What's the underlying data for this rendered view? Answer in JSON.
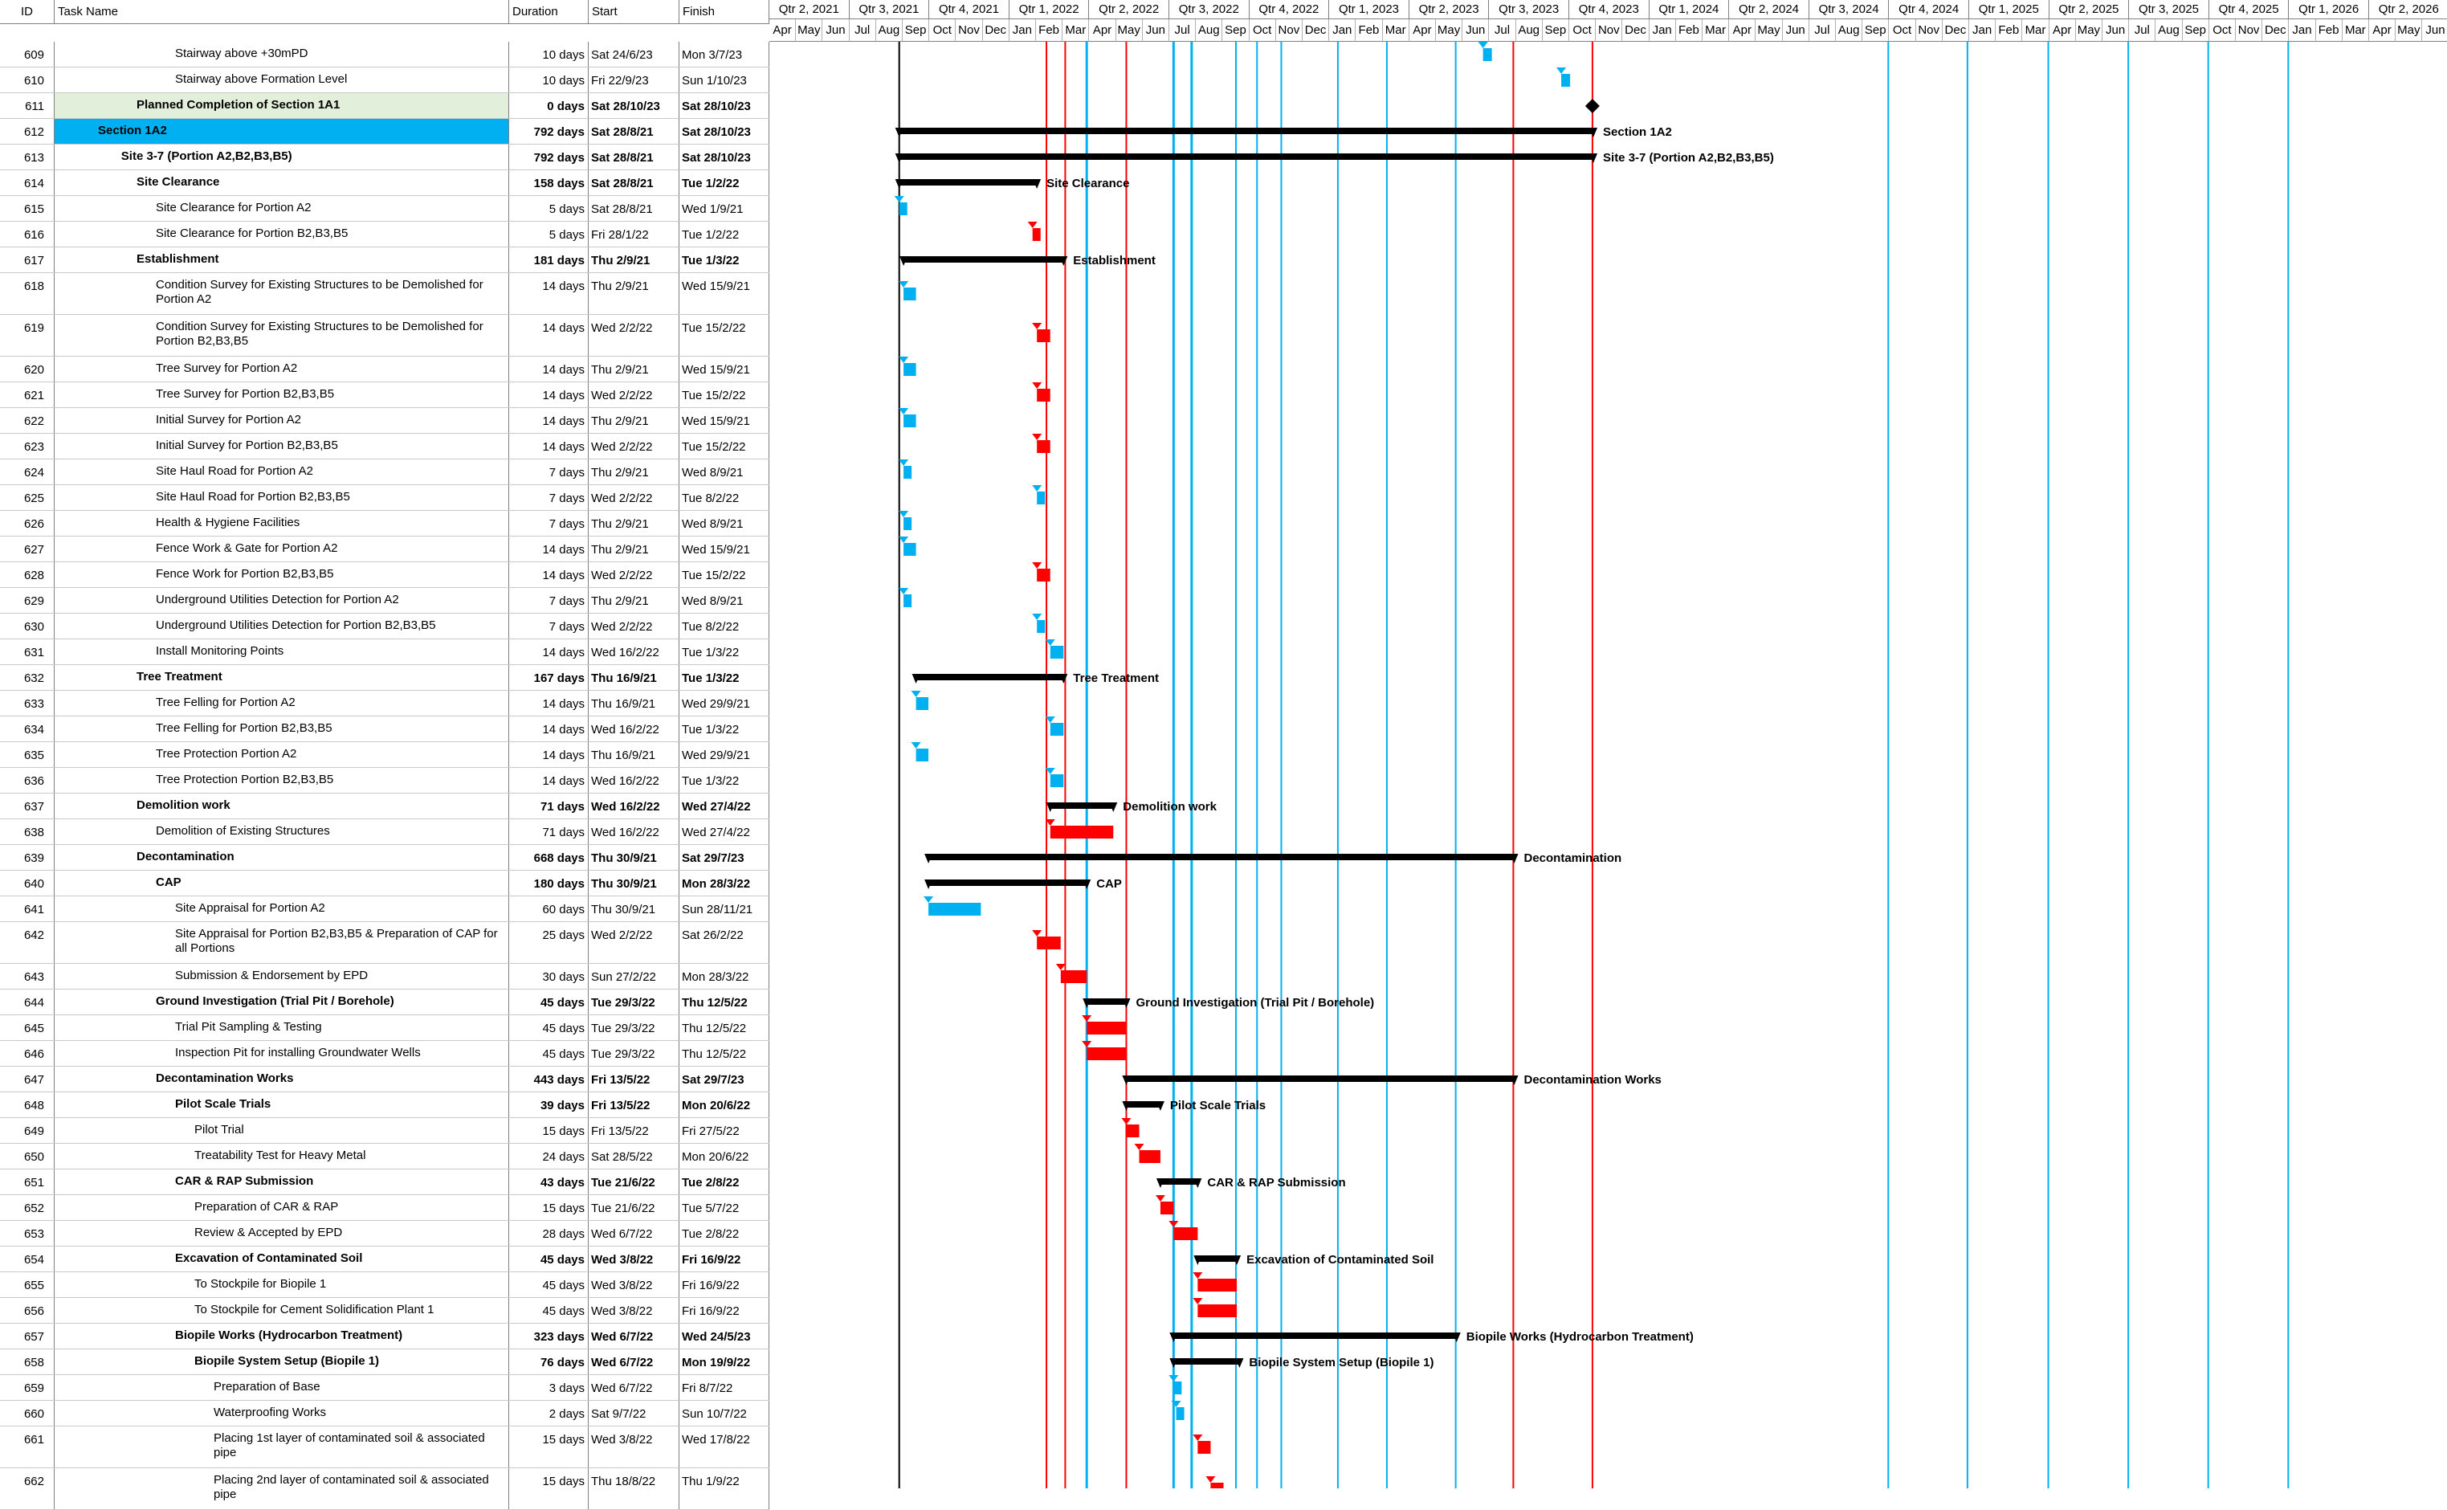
{
  "columns": {
    "id": "ID",
    "name": "Task Name",
    "duration": "Duration",
    "start": "Start",
    "finish": "Finish"
  },
  "timeline": {
    "quarters": [
      "Qtr 2, 2021",
      "Qtr 3, 2021",
      "Qtr 4, 2021",
      "Qtr 1, 2022",
      "Qtr 2, 2022",
      "Qtr 3, 2022",
      "Qtr 4, 2022",
      "Qtr 1, 2023",
      "Qtr 2, 2023",
      "Qtr 3, 2023",
      "Qtr 4, 2023",
      "Qtr 1, 2024",
      "Qtr 2, 2024",
      "Qtr 3, 2024",
      "Qtr 4, 2024",
      "Qtr 1, 2025",
      "Qtr 2, 2025",
      "Qtr 3, 2025",
      "Qtr 4, 2025",
      "Qtr 1, 2026",
      "Qtr 2, 2026"
    ],
    "months": [
      "Apr",
      "May",
      "Jun",
      "Jul",
      "Aug",
      "Sep",
      "Oct",
      "Nov",
      "Dec",
      "Jan",
      "Feb",
      "Mar",
      "Apr",
      "May",
      "Jun",
      "Jul",
      "Aug",
      "Sep",
      "Oct",
      "Nov",
      "Dec",
      "Jan",
      "Feb",
      "Mar",
      "Apr",
      "May",
      "Jun",
      "Jul",
      "Aug",
      "Sep",
      "Oct",
      "Nov",
      "Dec",
      "Jan",
      "Feb",
      "Mar",
      "Apr",
      "May",
      "Jun",
      "Jul",
      "Aug",
      "Sep",
      "Oct",
      "Nov",
      "Dec",
      "Jan",
      "Feb",
      "Mar",
      "Apr",
      "May",
      "Jun",
      "Jul",
      "Aug",
      "Sep",
      "Oct",
      "Nov",
      "Dec",
      "Jan",
      "Feb",
      "Mar",
      "Apr",
      "May",
      "Jun"
    ]
  },
  "colors": {
    "summary": "#000000",
    "normal": "#00B0F0",
    "critical": "#FF0000",
    "highlight_row": "#00B0F0",
    "milestone_row": "#E2EFDA"
  },
  "tasks": [
    {
      "id": "609",
      "name": "Stairway above +30mPD",
      "duration": "10 days",
      "start": "Sat 24/6/23",
      "finish": "Mon 3/7/23",
      "indent": 3,
      "type": "normal",
      "lines": 1
    },
    {
      "id": "610",
      "name": "Stairway above Formation Level",
      "duration": "10 days",
      "start": "Fri 22/9/23",
      "finish": "Sun 1/10/23",
      "indent": 3,
      "type": "normal",
      "lines": 1
    },
    {
      "id": "611",
      "name": "Planned Completion of Section 1A1",
      "duration": "0 days",
      "start": "Sat 28/10/23",
      "finish": "Sat 28/10/23",
      "indent": 2,
      "type": "milestone",
      "bold": true,
      "lines": 1
    },
    {
      "id": "612",
      "name": "Section 1A2",
      "duration": "792 days",
      "start": "Sat 28/8/21",
      "finish": "Sat 28/10/23",
      "indent": 1,
      "type": "summary",
      "bold": true,
      "lines": 1,
      "highlight": true
    },
    {
      "id": "613",
      "name": "Site 3-7 (Portion A2,B2,B3,B5)",
      "duration": "792 days",
      "start": "Sat 28/8/21",
      "finish": "Sat 28/10/23",
      "indent": 1.6,
      "type": "summary",
      "bold": true,
      "lines": 1
    },
    {
      "id": "614",
      "name": "Site Clearance",
      "duration": "158 days",
      "start": "Sat 28/8/21",
      "finish": "Tue 1/2/22",
      "indent": 2,
      "type": "summary",
      "bold": true,
      "lines": 1
    },
    {
      "id": "615",
      "name": "Site Clearance for Portion A2",
      "duration": "5 days",
      "start": "Sat 28/8/21",
      "finish": "Wed 1/9/21",
      "indent": 2.5,
      "type": "normal",
      "lines": 1
    },
    {
      "id": "616",
      "name": "Site Clearance for Portion B2,B3,B5",
      "duration": "5 days",
      "start": "Fri 28/1/22",
      "finish": "Tue 1/2/22",
      "indent": 2.5,
      "type": "critical",
      "lines": 1
    },
    {
      "id": "617",
      "name": "Establishment",
      "duration": "181 days",
      "start": "Thu 2/9/21",
      "finish": "Tue 1/3/22",
      "indent": 2,
      "type": "summary",
      "bold": true,
      "lines": 1
    },
    {
      "id": "618",
      "name": "Condition Survey for Existing Structures to be Demolished for Portion A2",
      "duration": "14 days",
      "start": "Thu 2/9/21",
      "finish": "Wed 15/9/21",
      "indent": 2.5,
      "type": "normal",
      "lines": 2
    },
    {
      "id": "619",
      "name": "Condition Survey for Existing Structures to be Demolished for Portion B2,B3,B5",
      "duration": "14 days",
      "start": "Wed 2/2/22",
      "finish": "Tue 15/2/22",
      "indent": 2.5,
      "type": "critical",
      "lines": 2
    },
    {
      "id": "620",
      "name": "Tree Survey for Portion A2",
      "duration": "14 days",
      "start": "Thu 2/9/21",
      "finish": "Wed 15/9/21",
      "indent": 2.5,
      "type": "normal",
      "lines": 1
    },
    {
      "id": "621",
      "name": "Tree Survey for Portion B2,B3,B5",
      "duration": "14 days",
      "start": "Wed 2/2/22",
      "finish": "Tue 15/2/22",
      "indent": 2.5,
      "type": "critical",
      "lines": 1
    },
    {
      "id": "622",
      "name": "Initial Survey for Portion A2",
      "duration": "14 days",
      "start": "Thu 2/9/21",
      "finish": "Wed 15/9/21",
      "indent": 2.5,
      "type": "normal",
      "lines": 1
    },
    {
      "id": "623",
      "name": "Initial Survey for Portion B2,B3,B5",
      "duration": "14 days",
      "start": "Wed 2/2/22",
      "finish": "Tue 15/2/22",
      "indent": 2.5,
      "type": "critical",
      "lines": 1
    },
    {
      "id": "624",
      "name": "Site Haul Road for Portion A2",
      "duration": "7 days",
      "start": "Thu 2/9/21",
      "finish": "Wed 8/9/21",
      "indent": 2.5,
      "type": "normal",
      "lines": 1
    },
    {
      "id": "625",
      "name": "Site Haul Road for Portion B2,B3,B5",
      "duration": "7 days",
      "start": "Wed 2/2/22",
      "finish": "Tue 8/2/22",
      "indent": 2.5,
      "type": "normal",
      "lines": 1
    },
    {
      "id": "626",
      "name": "Health & Hygiene Facilities",
      "duration": "7 days",
      "start": "Thu 2/9/21",
      "finish": "Wed 8/9/21",
      "indent": 2.5,
      "type": "normal",
      "lines": 1
    },
    {
      "id": "627",
      "name": "Fence Work & Gate for Portion A2",
      "duration": "14 days",
      "start": "Thu 2/9/21",
      "finish": "Wed 15/9/21",
      "indent": 2.5,
      "type": "normal",
      "lines": 1
    },
    {
      "id": "628",
      "name": "Fence Work for Portion B2,B3,B5",
      "duration": "14 days",
      "start": "Wed 2/2/22",
      "finish": "Tue 15/2/22",
      "indent": 2.5,
      "type": "critical",
      "lines": 1
    },
    {
      "id": "629",
      "name": "Underground Utilities Detection for Portion A2",
      "duration": "7 days",
      "start": "Thu 2/9/21",
      "finish": "Wed 8/9/21",
      "indent": 2.5,
      "type": "normal",
      "lines": 1
    },
    {
      "id": "630",
      "name": "Underground Utilities Detection for Portion B2,B3,B5",
      "duration": "7 days",
      "start": "Wed 2/2/22",
      "finish": "Tue 8/2/22",
      "indent": 2.5,
      "type": "normal",
      "lines": 1
    },
    {
      "id": "631",
      "name": "Install Monitoring Points",
      "duration": "14 days",
      "start": "Wed 16/2/22",
      "finish": "Tue 1/3/22",
      "indent": 2.5,
      "type": "normal",
      "lines": 1
    },
    {
      "id": "632",
      "name": "Tree Treatment",
      "duration": "167 days",
      "start": "Thu 16/9/21",
      "finish": "Tue 1/3/22",
      "indent": 2,
      "type": "summary",
      "bold": true,
      "lines": 1
    },
    {
      "id": "633",
      "name": "Tree Felling for Portion A2",
      "duration": "14 days",
      "start": "Thu 16/9/21",
      "finish": "Wed 29/9/21",
      "indent": 2.5,
      "type": "normal",
      "lines": 1
    },
    {
      "id": "634",
      "name": "Tree Felling for Portion B2,B3,B5",
      "duration": "14 days",
      "start": "Wed 16/2/22",
      "finish": "Tue 1/3/22",
      "indent": 2.5,
      "type": "normal",
      "lines": 1
    },
    {
      "id": "635",
      "name": "Tree Protection Portion A2",
      "duration": "14 days",
      "start": "Thu 16/9/21",
      "finish": "Wed 29/9/21",
      "indent": 2.5,
      "type": "normal",
      "lines": 1
    },
    {
      "id": "636",
      "name": "Tree Protection Portion B2,B3,B5",
      "duration": "14 days",
      "start": "Wed 16/2/22",
      "finish": "Tue 1/3/22",
      "indent": 2.5,
      "type": "normal",
      "lines": 1
    },
    {
      "id": "637",
      "name": "Demolition work",
      "duration": "71 days",
      "start": "Wed 16/2/22",
      "finish": "Wed 27/4/22",
      "indent": 2,
      "type": "summary",
      "bold": true,
      "lines": 1
    },
    {
      "id": "638",
      "name": "Demolition of Existing Structures",
      "duration": "71 days",
      "start": "Wed 16/2/22",
      "finish": "Wed 27/4/22",
      "indent": 2.5,
      "type": "critical",
      "lines": 1
    },
    {
      "id": "639",
      "name": "Decontamination",
      "duration": "668 days",
      "start": "Thu 30/9/21",
      "finish": "Sat 29/7/23",
      "indent": 2,
      "type": "summary",
      "bold": true,
      "lines": 1
    },
    {
      "id": "640",
      "name": "CAP",
      "duration": "180 days",
      "start": "Thu 30/9/21",
      "finish": "Mon 28/3/22",
      "indent": 2.5,
      "type": "summary",
      "bold": true,
      "lines": 1
    },
    {
      "id": "641",
      "name": "Site Appraisal for Portion A2",
      "duration": "60 days",
      "start": "Thu 30/9/21",
      "finish": "Sun 28/11/21",
      "indent": 3,
      "type": "normal",
      "lines": 1
    },
    {
      "id": "642",
      "name": "Site Appraisal for Portion B2,B3,B5 & Preparation of CAP for all Portions",
      "duration": "25 days",
      "start": "Wed 2/2/22",
      "finish": "Sat 26/2/22",
      "indent": 3,
      "type": "critical",
      "lines": 2
    },
    {
      "id": "643",
      "name": "Submission & Endorsement by EPD",
      "duration": "30 days",
      "start": "Sun 27/2/22",
      "finish": "Mon 28/3/22",
      "indent": 3,
      "type": "critical",
      "lines": 1
    },
    {
      "id": "644",
      "name": "Ground Investigation (Trial Pit / Borehole)",
      "duration": "45 days",
      "start": "Tue 29/3/22",
      "finish": "Thu 12/5/22",
      "indent": 2.5,
      "type": "summary",
      "bold": true,
      "lines": 1
    },
    {
      "id": "645",
      "name": "Trial Pit Sampling & Testing",
      "duration": "45 days",
      "start": "Tue 29/3/22",
      "finish": "Thu 12/5/22",
      "indent": 3,
      "type": "critical",
      "lines": 1
    },
    {
      "id": "646",
      "name": "Inspection Pit for installing Groundwater Wells",
      "duration": "45 days",
      "start": "Tue 29/3/22",
      "finish": "Thu 12/5/22",
      "indent": 3,
      "type": "critical",
      "lines": 1
    },
    {
      "id": "647",
      "name": "Decontamination Works",
      "duration": "443 days",
      "start": "Fri 13/5/22",
      "finish": "Sat 29/7/23",
      "indent": 2.5,
      "type": "summary",
      "bold": true,
      "lines": 1
    },
    {
      "id": "648",
      "name": "Pilot Scale Trials",
      "duration": "39 days",
      "start": "Fri 13/5/22",
      "finish": "Mon 20/6/22",
      "indent": 3,
      "type": "summary",
      "bold": true,
      "lines": 1
    },
    {
      "id": "649",
      "name": "Pilot Trial",
      "duration": "15 days",
      "start": "Fri 13/5/22",
      "finish": "Fri 27/5/22",
      "indent": 3.5,
      "type": "critical",
      "lines": 1
    },
    {
      "id": "650",
      "name": "Treatability Test for Heavy Metal",
      "duration": "24 days",
      "start": "Sat 28/5/22",
      "finish": "Mon 20/6/22",
      "indent": 3.5,
      "type": "critical",
      "lines": 1
    },
    {
      "id": "651",
      "name": "CAR & RAP Submission",
      "duration": "43 days",
      "start": "Tue 21/6/22",
      "finish": "Tue 2/8/22",
      "indent": 3,
      "type": "summary",
      "bold": true,
      "lines": 1
    },
    {
      "id": "652",
      "name": "Preparation of CAR & RAP",
      "duration": "15 days",
      "start": "Tue 21/6/22",
      "finish": "Tue 5/7/22",
      "indent": 3.5,
      "type": "critical",
      "lines": 1
    },
    {
      "id": "653",
      "name": "Review & Accepted by EPD",
      "duration": "28 days",
      "start": "Wed 6/7/22",
      "finish": "Tue 2/8/22",
      "indent": 3.5,
      "type": "critical",
      "lines": 1
    },
    {
      "id": "654",
      "name": "Excavation of Contaminated Soil",
      "duration": "45 days",
      "start": "Wed 3/8/22",
      "finish": "Fri 16/9/22",
      "indent": 3,
      "type": "summary",
      "bold": true,
      "lines": 1
    },
    {
      "id": "655",
      "name": "To Stockpile for Biopile 1",
      "duration": "45 days",
      "start": "Wed 3/8/22",
      "finish": "Fri 16/9/22",
      "indent": 3.5,
      "type": "critical",
      "lines": 1
    },
    {
      "id": "656",
      "name": "To Stockpile for Cement Solidification Plant 1",
      "duration": "45 days",
      "start": "Wed 3/8/22",
      "finish": "Fri 16/9/22",
      "indent": 3.5,
      "type": "critical",
      "lines": 1
    },
    {
      "id": "657",
      "name": "Biopile Works (Hydrocarbon Treatment)",
      "duration": "323 days",
      "start": "Wed 6/7/22",
      "finish": "Wed 24/5/23",
      "indent": 3,
      "type": "summary",
      "bold": true,
      "lines": 1
    },
    {
      "id": "658",
      "name": "Biopile System Setup (Biopile 1)",
      "duration": "76 days",
      "start": "Wed 6/7/22",
      "finish": "Mon 19/9/22",
      "indent": 3.5,
      "type": "summary",
      "bold": true,
      "lines": 1
    },
    {
      "id": "659",
      "name": "Preparation of Base",
      "duration": "3 days",
      "start": "Wed 6/7/22",
      "finish": "Fri 8/7/22",
      "indent": 4,
      "type": "normal",
      "lines": 1
    },
    {
      "id": "660",
      "name": "Waterproofing Works",
      "duration": "2 days",
      "start": "Sat 9/7/22",
      "finish": "Sun 10/7/22",
      "indent": 4,
      "type": "normal",
      "lines": 1
    },
    {
      "id": "661",
      "name": "Placing 1st layer of contaminated soil & associated pipe",
      "duration": "15 days",
      "start": "Wed 3/8/22",
      "finish": "Wed 17/8/22",
      "indent": 4,
      "type": "critical",
      "lines": 2
    },
    {
      "id": "662",
      "name": "Placing 2nd layer of contaminated soil & associated pipe",
      "duration": "15 days",
      "start": "Thu 18/8/22",
      "finish": "Thu 1/9/22",
      "indent": 4,
      "type": "critical",
      "lines": 2
    }
  ]
}
